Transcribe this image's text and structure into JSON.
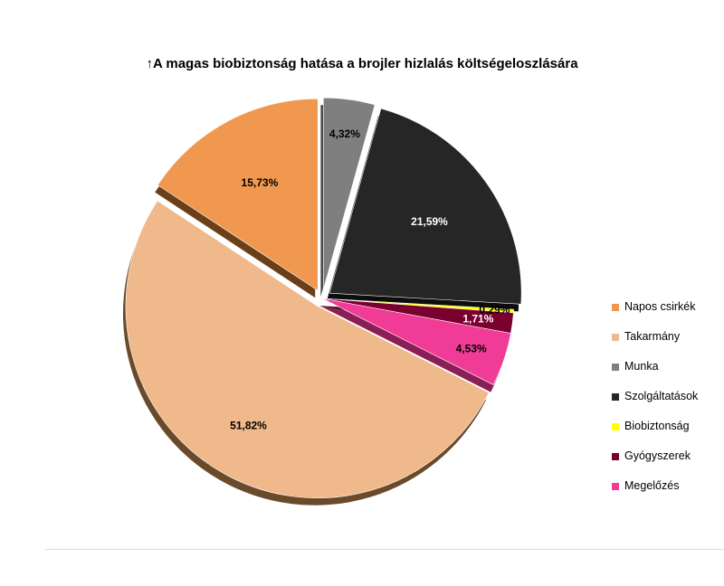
{
  "chart_data": {
    "type": "pie",
    "title": "↑A magas biobiztonság hatása a brojler hizlalás költségeloszlására",
    "legend_position": "right",
    "slices": [
      {
        "name": "Munka",
        "value": 4.32,
        "label": "4,32%",
        "color": "#7f7f7f",
        "shadow": "#4d4d4d",
        "label_color": "#000000",
        "exploded": true
      },
      {
        "name": "Szolgáltatások",
        "value": 21.59,
        "label": "21,59%",
        "color": "#262626",
        "shadow": "#0d0d0d",
        "label_color": "#ffffff",
        "exploded": true
      },
      {
        "name": "Biobiztonság",
        "value": 0.29,
        "label": "0,29%",
        "color": "#ffff00",
        "shadow": "#8a8a00",
        "label_color": "#000000",
        "exploded": false
      },
      {
        "name": "Gyógyszerek",
        "value": 1.71,
        "label": "1,71%",
        "color": "#7a0030",
        "shadow": "#3d0018",
        "label_color": "#ffffff",
        "exploded": false
      },
      {
        "name": "Megelőzés",
        "value": 4.53,
        "label": "4,53%",
        "color": "#f03c96",
        "shadow": "#8c1e56",
        "label_color": "#000000",
        "exploded": false
      },
      {
        "name": "Takarmány",
        "value": 51.82,
        "label": "51,82%",
        "color": "#f0b98b",
        "shadow": "#6b4a2c",
        "label_color": "#000000",
        "exploded": true
      },
      {
        "name": "Napos csirkék",
        "value": 15.73,
        "label": "15,73%",
        "color": "#f0984f",
        "shadow": "#6b3f17",
        "label_color": "#000000",
        "exploded": true
      }
    ],
    "legend": [
      {
        "name": "Napos csirkék",
        "color": "#f0984f"
      },
      {
        "name": "Takarmány",
        "color": "#f0b98b"
      },
      {
        "name": "Munka",
        "color": "#7f7f7f"
      },
      {
        "name": "Szolgáltatások",
        "color": "#262626"
      },
      {
        "name": "Biobiztonság",
        "color": "#ffff00"
      },
      {
        "name": "Gyógyszerek",
        "color": "#7a0030"
      },
      {
        "name": "Megelőzés",
        "color": "#f03c96"
      }
    ]
  }
}
